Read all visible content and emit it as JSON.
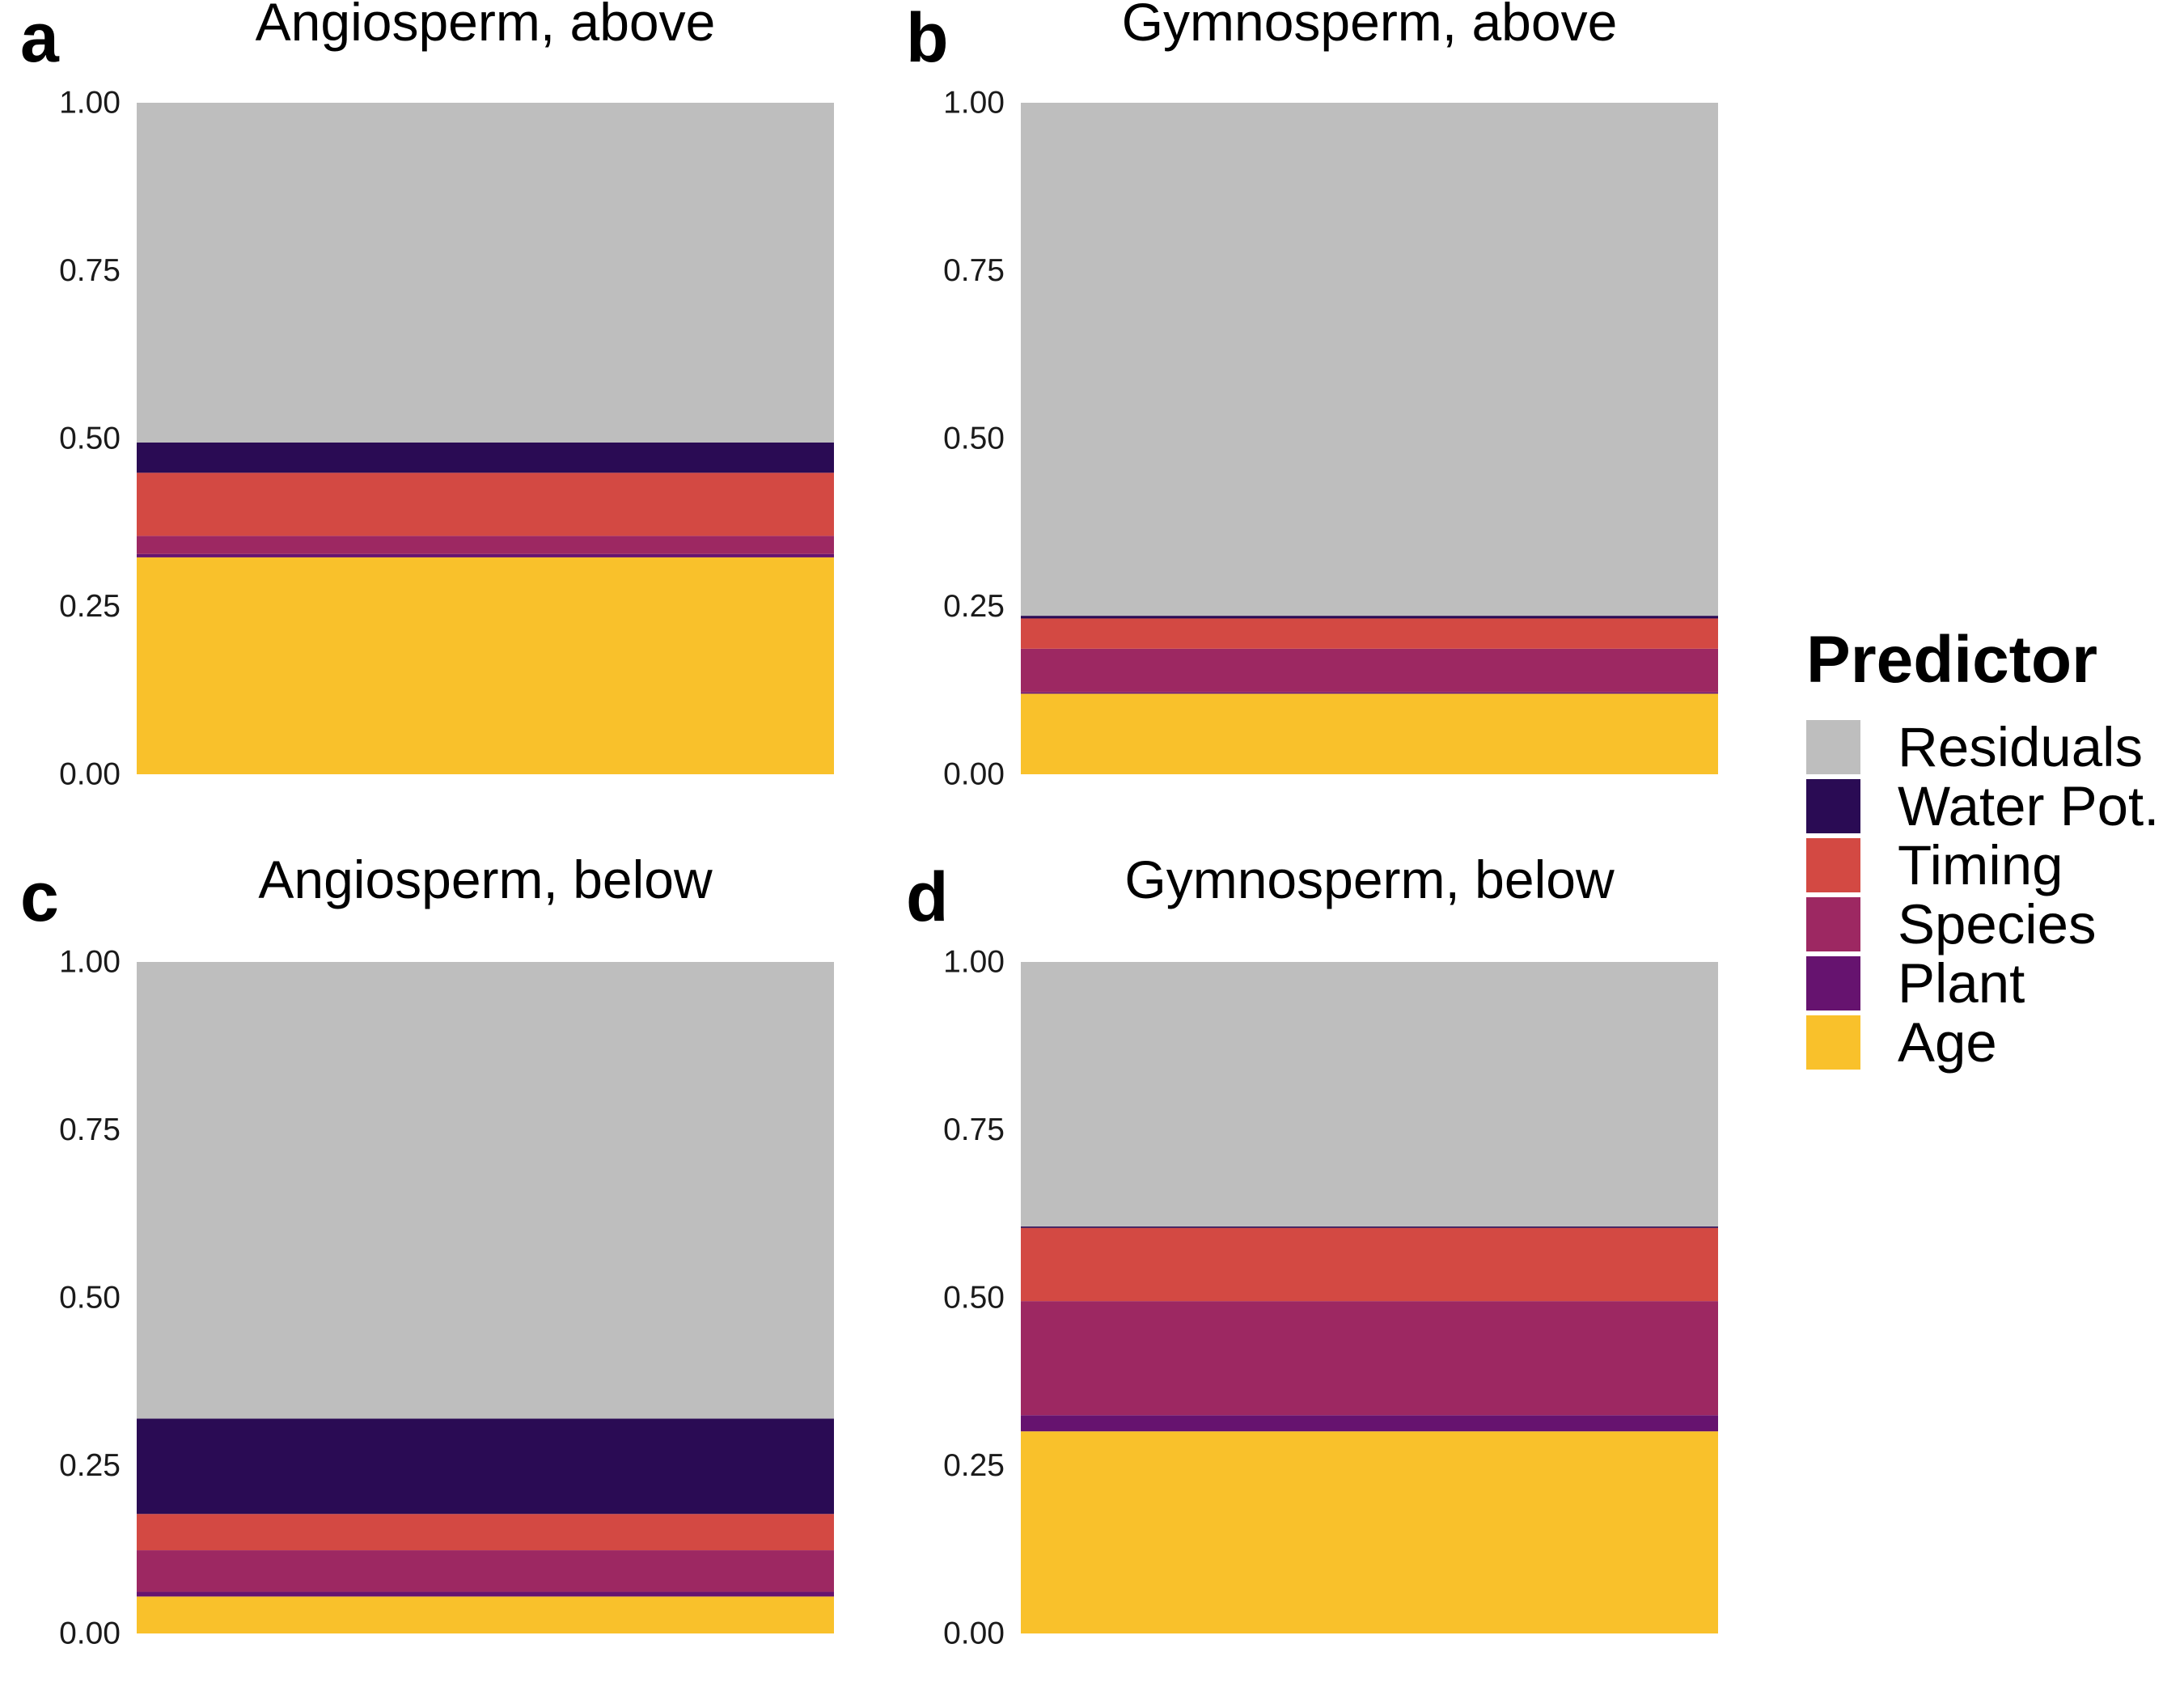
{
  "chart_data": [
    {
      "type": "bar",
      "panel": "a",
      "title": "Angiosperm, above",
      "stacked": true,
      "xlabel": "",
      "ylabel": "",
      "ylim": [
        0,
        1
      ],
      "yticks": [
        "0.00",
        "0.25",
        "0.50",
        "0.75",
        "1.00"
      ],
      "series": [
        {
          "name": "Age",
          "values": [
            0.323
          ]
        },
        {
          "name": "Plant",
          "values": [
            0.005
          ]
        },
        {
          "name": "Species",
          "values": [
            0.027
          ]
        },
        {
          "name": "Timing",
          "values": [
            0.094
          ]
        },
        {
          "name": "Water Pot.",
          "values": [
            0.045
          ]
        },
        {
          "name": "Residuals",
          "values": [
            0.506
          ]
        }
      ]
    },
    {
      "type": "bar",
      "panel": "b",
      "title": "Gymnosperm, above",
      "stacked": true,
      "xlabel": "",
      "ylabel": "",
      "ylim": [
        0,
        1
      ],
      "yticks": [
        "0.00",
        "0.25",
        "0.50",
        "0.75",
        "1.00"
      ],
      "series": [
        {
          "name": "Age",
          "values": [
            0.12
          ]
        },
        {
          "name": "Plant",
          "values": [
            0.002
          ]
        },
        {
          "name": "Species",
          "values": [
            0.065
          ]
        },
        {
          "name": "Timing",
          "values": [
            0.045
          ]
        },
        {
          "name": "Water Pot.",
          "values": [
            0.004
          ]
        },
        {
          "name": "Residuals",
          "values": [
            0.764
          ]
        }
      ]
    },
    {
      "type": "bar",
      "panel": "c",
      "title": "Angiosperm, below",
      "stacked": true,
      "xlabel": "",
      "ylabel": "",
      "ylim": [
        0,
        1
      ],
      "yticks": [
        "0.00",
        "0.25",
        "0.50",
        "0.75",
        "1.00"
      ],
      "series": [
        {
          "name": "Age",
          "values": [
            0.055
          ]
        },
        {
          "name": "Plant",
          "values": [
            0.007
          ]
        },
        {
          "name": "Species",
          "values": [
            0.062
          ]
        },
        {
          "name": "Timing",
          "values": [
            0.054
          ]
        },
        {
          "name": "Water Pot.",
          "values": [
            0.142
          ]
        },
        {
          "name": "Residuals",
          "values": [
            0.68
          ]
        }
      ]
    },
    {
      "type": "bar",
      "panel": "d",
      "title": "Gymnosperm, below",
      "stacked": true,
      "xlabel": "",
      "ylabel": "",
      "ylim": [
        0,
        1
      ],
      "yticks": [
        "0.00",
        "0.25",
        "0.50",
        "0.75",
        "1.00"
      ],
      "series": [
        {
          "name": "Age",
          "values": [
            0.301
          ]
        },
        {
          "name": "Plant",
          "values": [
            0.024
          ]
        },
        {
          "name": "Species",
          "values": [
            0.17
          ]
        },
        {
          "name": "Timing",
          "values": [
            0.109
          ]
        },
        {
          "name": "Water Pot.",
          "values": [
            0.002
          ]
        },
        {
          "name": "Residuals",
          "values": [
            0.394
          ]
        }
      ]
    }
  ],
  "legend": {
    "title": "Predictor",
    "placement": "right",
    "items": [
      {
        "name": "Residuals",
        "color": "#bebebe"
      },
      {
        "name": "Water Pot.",
        "color": "#2a0b54"
      },
      {
        "name": "Timing",
        "color": "#d34943"
      },
      {
        "name": "Species",
        "color": "#9d2862"
      },
      {
        "name": "Plant",
        "color": "#66136f"
      },
      {
        "name": "Age",
        "color": "#f9c12b"
      }
    ]
  }
}
